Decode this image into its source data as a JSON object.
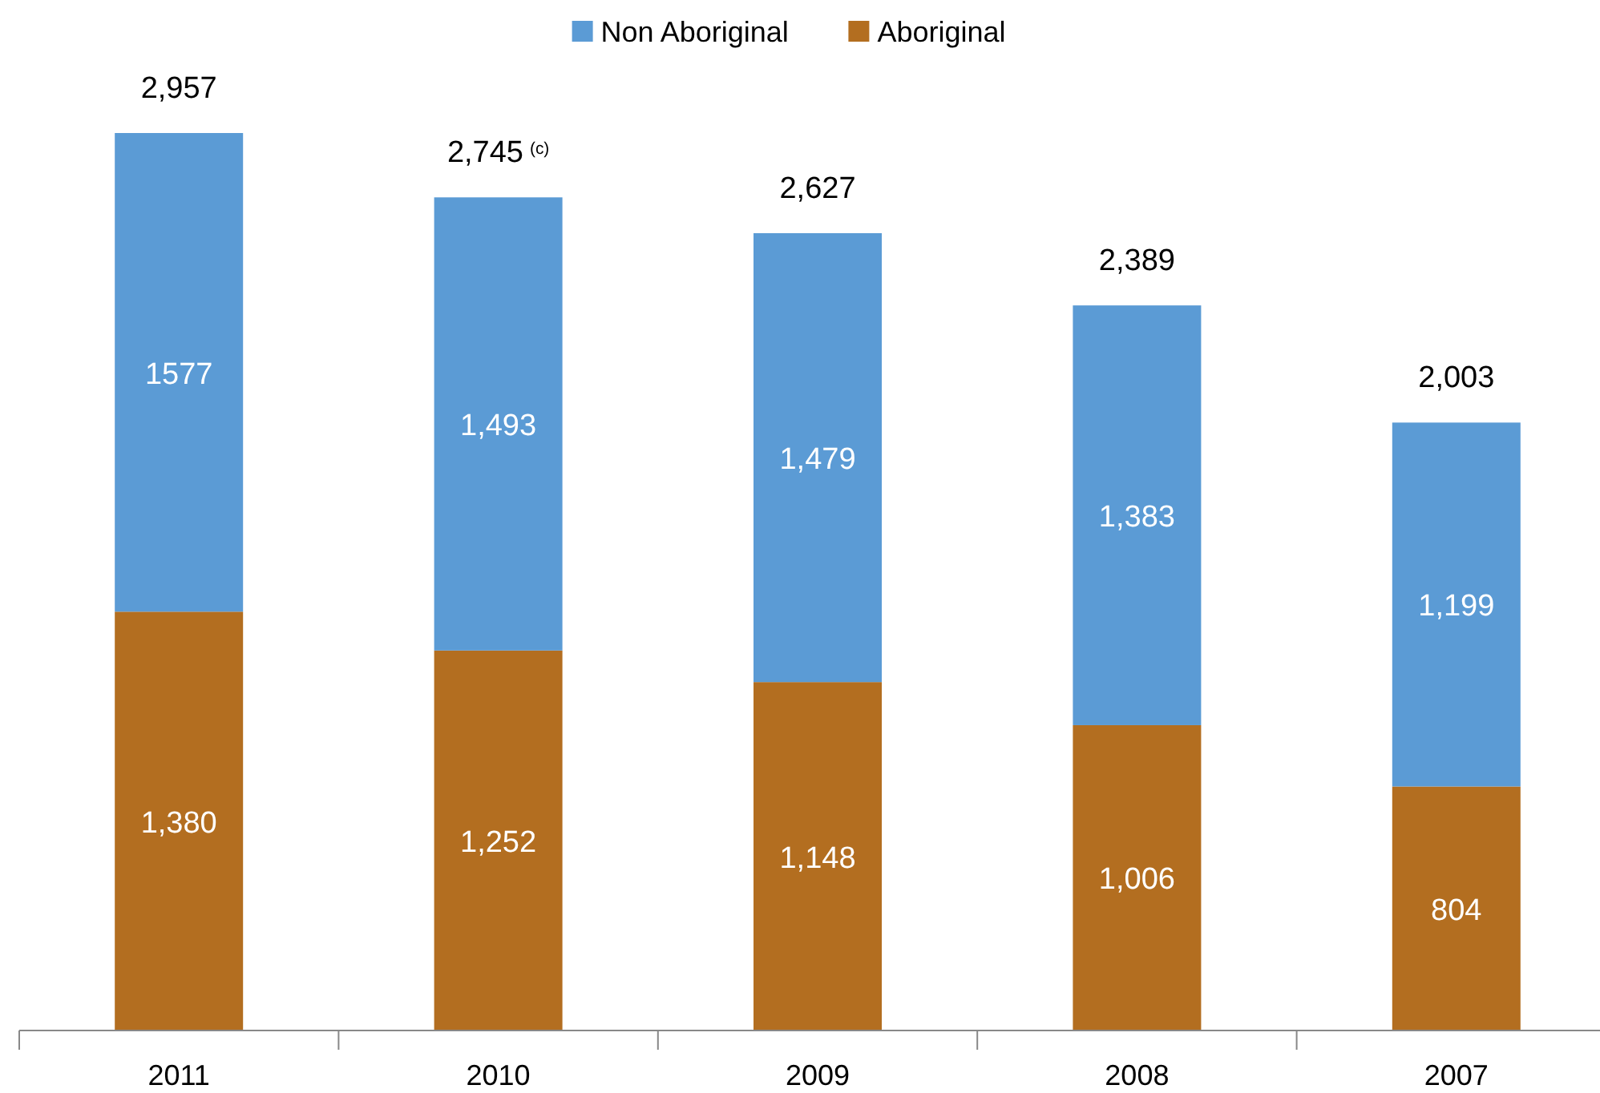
{
  "chart_data": {
    "type": "bar",
    "stacked": true,
    "categories": [
      "2011",
      "2010",
      "2009",
      "2008",
      "2007"
    ],
    "legend": "top",
    "series": [
      {
        "name": "Aboriginal",
        "color": "#b36e20",
        "values": [
          1380,
          1252,
          1148,
          1006,
          804
        ],
        "value_labels": [
          "1,380",
          "1,252",
          "1,148",
          "1,006",
          "804"
        ]
      },
      {
        "name": "Non Aboriginal",
        "color": "#5b9bd5",
        "values": [
          1577,
          1493,
          1479,
          1383,
          1199
        ],
        "value_labels": [
          "1577",
          "1,493",
          "1,479",
          "1,383",
          "1,199"
        ]
      }
    ],
    "totals": [
      "2,957",
      "2,745$^{(c)}$",
      "2,627",
      "2,389",
      "2,003"
    ]
  }
}
